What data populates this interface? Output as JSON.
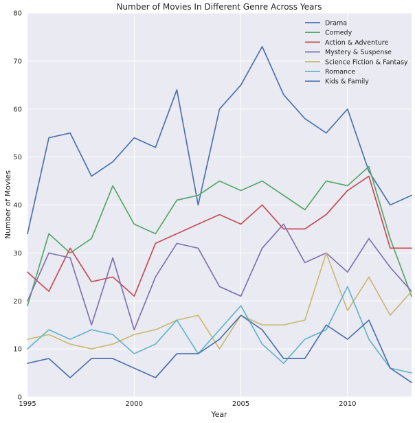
{
  "chart_data": {
    "type": "line",
    "title": "Number of Movies In Different Genre Across Years",
    "xlabel": "Year",
    "ylabel": "Number of Movies",
    "xlim": [
      1995,
      2013
    ],
    "ylim": [
      0,
      80
    ],
    "xticks": [
      1995,
      2000,
      2005,
      2010
    ],
    "yticks": [
      0,
      10,
      20,
      30,
      40,
      50,
      60,
      70,
      80
    ],
    "grid": true,
    "legend_position": "top-right",
    "x": [
      1995,
      1996,
      1997,
      1998,
      1999,
      2000,
      2001,
      2002,
      2003,
      2004,
      2005,
      2006,
      2007,
      2008,
      2009,
      2010,
      2011,
      2012,
      2013
    ],
    "series": [
      {
        "name": "Drama",
        "color": "#4c72b0",
        "values": [
          34,
          54,
          55,
          46,
          49,
          54,
          52,
          64,
          40,
          60,
          65,
          73,
          63,
          58,
          55,
          60,
          47,
          40,
          42
        ]
      },
      {
        "name": "Comedy",
        "color": "#55a868",
        "values": [
          19,
          34,
          30,
          33,
          44,
          36,
          34,
          41,
          42,
          45,
          43,
          45,
          42,
          39,
          45,
          44,
          48,
          33,
          21
        ]
      },
      {
        "name": "Action & Adventure",
        "color": "#c44e52",
        "values": [
          26,
          22,
          31,
          24,
          25,
          21,
          32,
          34,
          36,
          38,
          36,
          40,
          35,
          35,
          38,
          43,
          46,
          31,
          31
        ]
      },
      {
        "name": "Mystery & Suspense",
        "color": "#8172b2",
        "values": [
          20,
          30,
          29,
          15,
          29,
          14,
          25,
          32,
          31,
          23,
          21,
          31,
          36,
          28,
          30,
          26,
          33,
          27,
          22
        ]
      },
      {
        "name": "Science Fiction & Fantasy",
        "color": "#ccb974",
        "values": [
          12,
          13,
          11,
          10,
          11,
          13,
          14,
          16,
          17,
          10,
          17,
          15,
          15,
          16,
          30,
          18,
          25,
          17,
          22
        ]
      },
      {
        "name": "Romance",
        "color": "#64b5cd",
        "values": [
          10,
          14,
          12,
          14,
          13,
          9,
          11,
          16,
          9,
          14,
          19,
          11,
          7,
          12,
          14,
          23,
          12,
          6,
          5
        ]
      },
      {
        "name": "Kids & Family",
        "color": "#4c72b0",
        "values": [
          7,
          8,
          4,
          8,
          8,
          6,
          4,
          9,
          9,
          12,
          17,
          14,
          8,
          8,
          15,
          12,
          16,
          6,
          3
        ]
      }
    ]
  }
}
